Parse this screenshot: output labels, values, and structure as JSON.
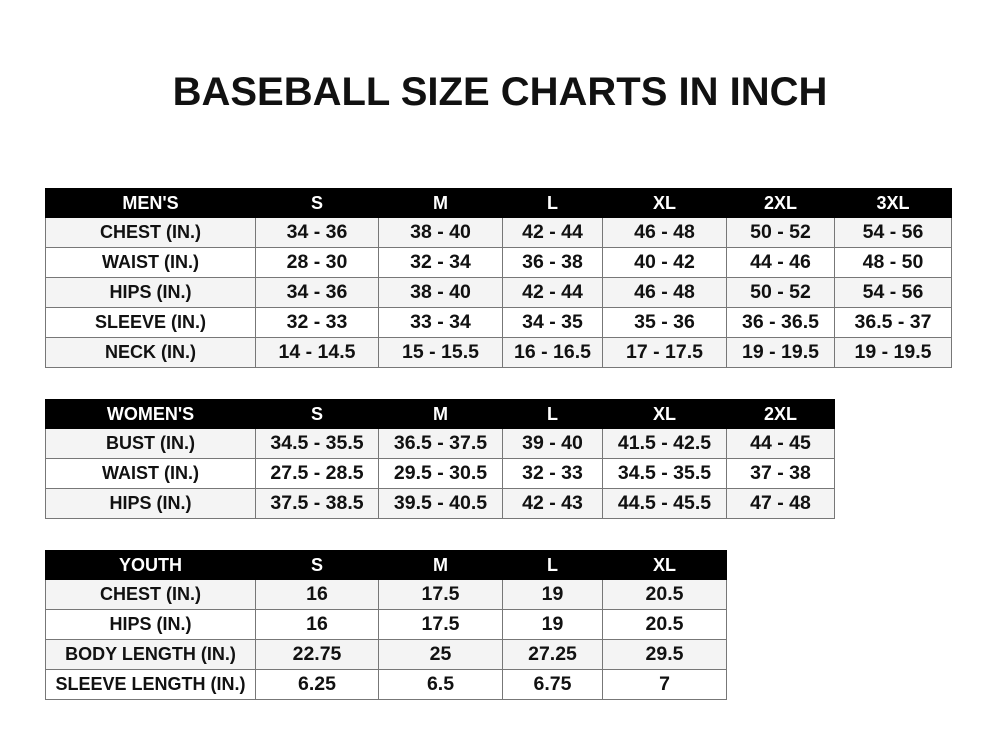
{
  "title": "BASEBALL SIZE CHARTS IN INCH",
  "tables": [
    {
      "id": "men",
      "headers": [
        "MEN'S",
        "S",
        "M",
        "L",
        "XL",
        "2XL",
        "3XL"
      ],
      "rows": [
        [
          "CHEST (IN.)",
          "34 - 36",
          "38 - 40",
          "42 - 44",
          "46 - 48",
          "50 - 52",
          "54 - 56"
        ],
        [
          "WAIST (IN.)",
          "28 - 30",
          "32 - 34",
          "36 - 38",
          "40 - 42",
          "44 - 46",
          "48 - 50"
        ],
        [
          "HIPS (IN.)",
          "34 - 36",
          "38 - 40",
          "42 - 44",
          "46 - 48",
          "50 - 52",
          "54 - 56"
        ],
        [
          "SLEEVE (IN.)",
          "32 - 33",
          "33 - 34",
          "34 - 35",
          "35 - 36",
          "36 - 36.5",
          "36.5 - 37"
        ],
        [
          "NECK (IN.)",
          "14 - 14.5",
          "15 - 15.5",
          "16 - 16.5",
          "17 - 17.5",
          "19 - 19.5",
          "19 - 19.5"
        ]
      ]
    },
    {
      "id": "women",
      "headers": [
        "WOMEN'S",
        "S",
        "M",
        "L",
        "XL",
        "2XL"
      ],
      "rows": [
        [
          "BUST (IN.)",
          "34.5 - 35.5",
          "36.5 - 37.5",
          "39 - 40",
          "41.5 - 42.5",
          "44 - 45"
        ],
        [
          "WAIST (IN.)",
          "27.5 - 28.5",
          "29.5 - 30.5",
          "32 - 33",
          "34.5 - 35.5",
          "37 - 38"
        ],
        [
          "HIPS (IN.)",
          "37.5 - 38.5",
          "39.5 - 40.5",
          "42 - 43",
          "44.5 - 45.5",
          "47 - 48"
        ]
      ]
    },
    {
      "id": "youth",
      "headers": [
        "YOUTH",
        "S",
        "M",
        "L",
        "XL"
      ],
      "rows": [
        [
          "CHEST (IN.)",
          "16",
          "17.5",
          "19",
          "20.5"
        ],
        [
          "HIPS (IN.)",
          "16",
          "17.5",
          "19",
          "20.5"
        ],
        [
          "BODY LENGTH (IN.)",
          "22.75",
          "25",
          "27.25",
          "29.5"
        ],
        [
          "SLEEVE LENGTH (IN.)",
          "6.25",
          "6.5",
          "6.75",
          "7"
        ]
      ]
    }
  ]
}
